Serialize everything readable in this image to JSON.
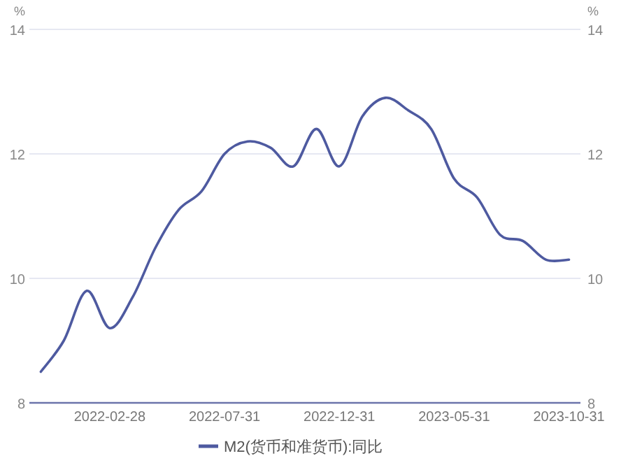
{
  "chart_data": {
    "type": "line",
    "ylabel": "%",
    "y2label": "%",
    "categories": [
      null,
      null,
      null,
      "2022-02-28",
      null,
      null,
      null,
      null,
      "2022-07-31",
      null,
      null,
      null,
      null,
      "2022-12-31",
      null,
      null,
      null,
      null,
      "2023-05-31",
      null,
      null,
      null,
      null,
      "2023-10-31"
    ],
    "series": [
      {
        "name": "M2(货币和准货币):同比",
        "color": "#4e5aa0",
        "values": [
          8.5,
          9.0,
          9.8,
          9.2,
          9.7,
          10.5,
          11.1,
          11.4,
          12.0,
          12.2,
          12.1,
          11.8,
          12.4,
          11.8,
          12.6,
          12.9,
          12.7,
          12.4,
          11.6,
          11.3,
          10.7,
          10.6,
          10.3,
          10.3
        ]
      }
    ],
    "ylim": [
      8,
      14
    ],
    "yticks": [
      8,
      10,
      12,
      14
    ],
    "y2lim": [
      8,
      14
    ],
    "y2ticks": [
      8,
      10,
      12,
      14
    ],
    "grid": "y",
    "legend": "bottom",
    "marker": "none",
    "line_style": "solid"
  }
}
